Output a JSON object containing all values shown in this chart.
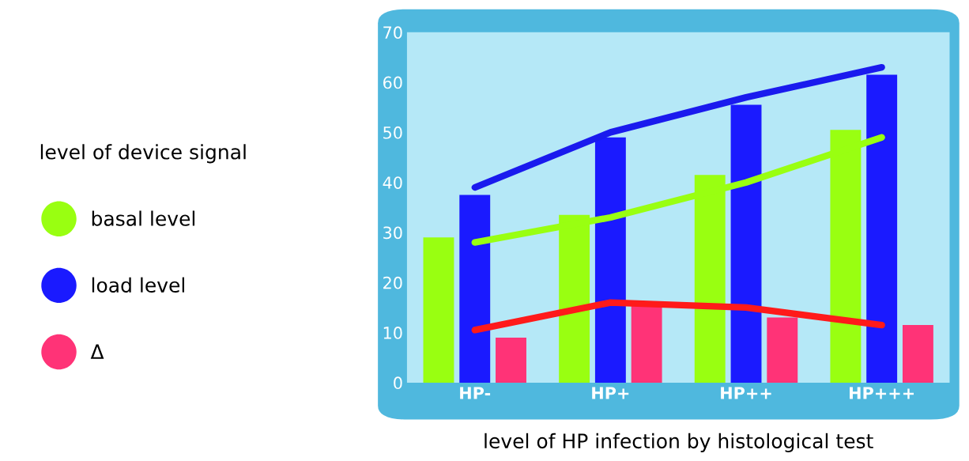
{
  "chart_data": {
    "type": "bar",
    "xlabel": "level of HP infection by histological test",
    "legend_title": "level of device signal",
    "categories": [
      "HP-",
      "HP+",
      "HP++",
      "HP+++"
    ],
    "series": [
      {
        "name": "basal level",
        "color": "#99ff11",
        "values": [
          29,
          33.5,
          41.5,
          50.5
        ]
      },
      {
        "name": "load level",
        "color": "#1a1aff",
        "values": [
          37.5,
          49,
          55.5,
          61.5
        ]
      },
      {
        "name": "Δ",
        "color": "#ff3377",
        "values": [
          9,
          15.5,
          13,
          11.5
        ]
      },
      {
        "type": "line",
        "color": "#1a1aee",
        "values": [
          39,
          50,
          57,
          63
        ]
      },
      {
        "type": "line",
        "color": "#99ff11",
        "values": [
          28,
          33,
          40,
          49
        ]
      },
      {
        "type": "line",
        "color": "#ff1a1a",
        "values": [
          10.5,
          16,
          15,
          11.5
        ]
      }
    ],
    "ylim": [
      0,
      70
    ],
    "yticks": [
      0,
      10,
      20,
      30,
      40,
      50,
      60,
      70
    ],
    "grid": false,
    "legend": "left"
  }
}
